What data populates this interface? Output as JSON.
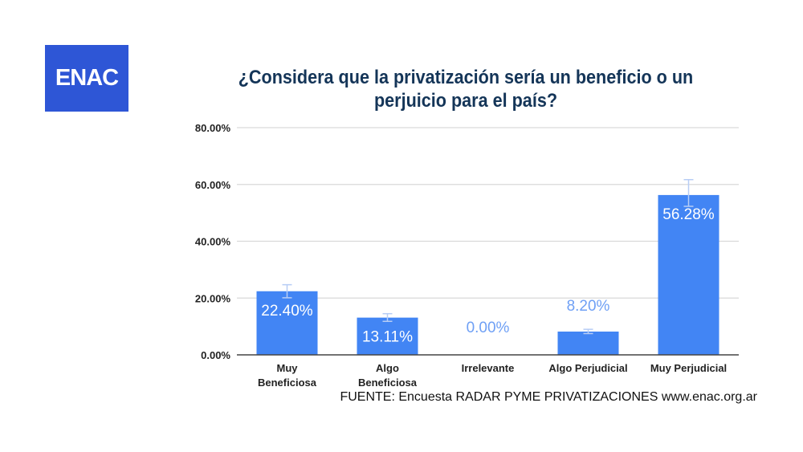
{
  "logo": {
    "text": "ENAC",
    "color": "#2e56d6"
  },
  "source": "FUENTE: Encuesta RADAR PYME PRIVATIZACIONES www.enac.org.ar",
  "chart_data": {
    "type": "bar",
    "title": "¿Considera que la privatización sería un beneficio o un perjuicio para el país?",
    "categories": [
      [
        "Muy",
        "Beneficiosa"
      ],
      [
        "Algo",
        "Beneficiosa"
      ],
      [
        "Irrelevante"
      ],
      [
        "Algo Perjudicial"
      ],
      [
        "Muy Perjudicial"
      ]
    ],
    "values": [
      22.4,
      13.11,
      0.0,
      8.2,
      56.28
    ],
    "data_labels": [
      "22.40%",
      "13.11%",
      "0.00%",
      "8.20%",
      "56.28%"
    ],
    "error_bars": [
      [
        20.1,
        24.7
      ],
      [
        11.8,
        14.5
      ],
      null,
      [
        7.5,
        9.0
      ],
      [
        52.3,
        61.7
      ]
    ],
    "yticks": [
      "0.00%",
      "20.00%",
      "40.00%",
      "60.00%",
      "80.00%"
    ],
    "ytick_values": [
      0,
      20,
      40,
      60,
      80
    ],
    "ylim": [
      0,
      80
    ],
    "grid": true,
    "bar_color": "#4285f4",
    "label_color_inside": "#ffffff",
    "label_color_outside": "#6fa0f5"
  }
}
